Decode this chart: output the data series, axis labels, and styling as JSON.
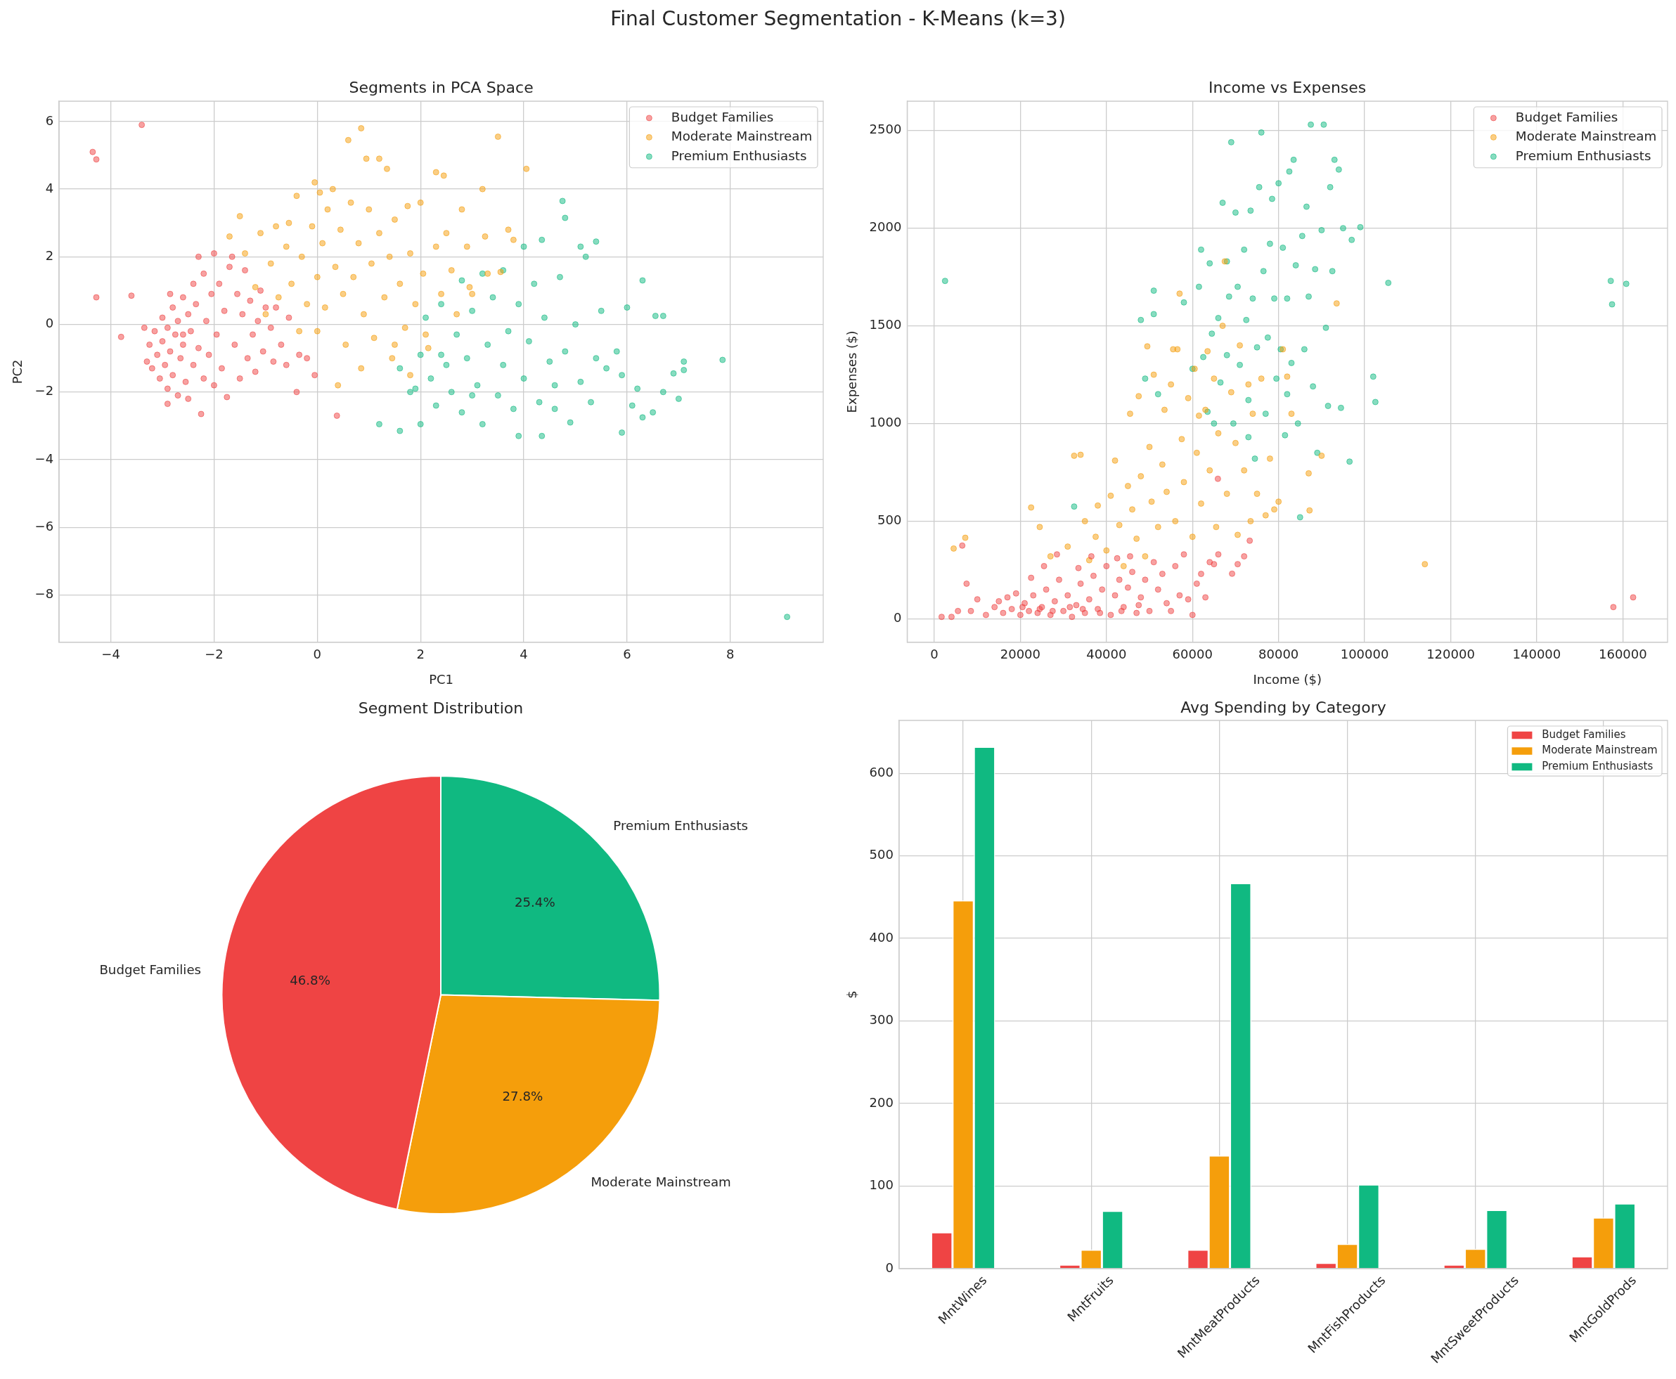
{
  "chart_data": [
    {
      "type": "scatter",
      "title": "Segments in PCA Space",
      "xlabel": "PC1",
      "ylabel": "PC2",
      "annotations": [
        "Final Customer Segmentation - K-Means (k=3)"
      ],
      "xlim": [
        -5.0,
        9.8
      ],
      "ylim": [
        -9.4,
        6.6
      ],
      "xticks": [
        {
          "value": -4,
          "label": "−4"
        },
        {
          "value": -2,
          "label": "−2"
        },
        0,
        2,
        4,
        6,
        8
      ],
      "yticks": [
        {
          "value": -8,
          "label": "−8"
        },
        {
          "value": -6,
          "label": "−6"
        },
        {
          "value": -4,
          "label": "−4"
        },
        {
          "value": -2,
          "label": "−2"
        },
        0,
        2,
        4,
        6
      ],
      "grid": true,
      "legend": "top right",
      "marker": "circle",
      "series": [
        {
          "name": "Budget Families",
          "color": "#ef4444",
          "x": [
            -3.3,
            -3.25,
            -3.2,
            -3.15,
            -3.1,
            -3.05,
            -3.0,
            -3.0,
            -2.95,
            -2.9,
            -2.9,
            -2.85,
            -2.8,
            -2.8,
            -2.75,
            -2.7,
            -2.7,
            -2.65,
            -2.6,
            -2.6,
            -2.55,
            -2.5,
            -2.5,
            -2.45,
            -2.4,
            -2.4,
            -2.35,
            -2.3,
            -2.3,
            -2.25,
            -2.2,
            -2.2,
            -2.15,
            -2.1,
            -2.05,
            -2.0,
            -2.0,
            -1.95,
            -1.9,
            -1.85,
            -1.8,
            -1.75,
            -1.7,
            -1.65,
            -1.6,
            -1.55,
            -1.5,
            -1.45,
            -1.4,
            -1.35,
            -1.3,
            -1.25,
            -1.2,
            -1.15,
            -1.1,
            -1.05,
            -1.0,
            -0.9,
            -0.85,
            -0.8,
            -0.7,
            -0.6,
            -0.55,
            -0.4,
            -0.35,
            -0.2,
            -0.05,
            0.38,
            -3.8,
            -3.6,
            -4.28,
            -4.35,
            -4.28,
            -3.4,
            -2.9,
            -3.35,
            -2.85,
            -2.6
          ],
          "values": [
            -1.1,
            -0.6,
            -1.3,
            -0.2,
            -0.9,
            -1.6,
            -0.5,
            0.2,
            -1.2,
            -0.1,
            -1.9,
            -0.8,
            0.5,
            -1.5,
            -0.3,
            -2.1,
            0.1,
            -1.0,
            0.8,
            -0.6,
            -1.7,
            0.3,
            -2.2,
            -0.2,
            1.2,
            -1.2,
            0.6,
            -0.7,
            2.0,
            -2.65,
            1.5,
            -1.6,
            0.1,
            -0.9,
            0.9,
            -1.8,
            2.1,
            -0.3,
            1.2,
            -1.3,
            0.4,
            -2.15,
            1.7,
            2.0,
            -0.6,
            0.9,
            -1.6,
            0.3,
            1.6,
            -1.0,
            0.7,
            -0.3,
            -1.4,
            0.1,
            1.0,
            -0.8,
            0.5,
            -0.1,
            -1.1,
            0.5,
            -0.6,
            -1.2,
            0.2,
            -2.0,
            -0.9,
            -1.0,
            -1.5,
            -2.7,
            -0.37,
            0.85,
            0.8,
            5.1,
            4.88,
            5.9,
            -2.35,
            -0.1,
            0.9,
            -0.3
          ]
        },
        {
          "name": "Moderate Mainstream",
          "color": "#f59e0b",
          "x": [
            -1.7,
            -1.5,
            -1.4,
            -1.2,
            -1.1,
            -1.0,
            -0.9,
            -0.8,
            -0.75,
            -0.6,
            -0.55,
            -0.5,
            -0.4,
            -0.35,
            -0.3,
            -0.2,
            -0.1,
            -0.05,
            0.0,
            0.0,
            0.05,
            0.1,
            0.15,
            0.2,
            0.3,
            0.35,
            0.4,
            0.45,
            0.5,
            0.55,
            0.6,
            0.65,
            0.7,
            0.8,
            0.85,
            0.9,
            0.95,
            1.0,
            1.05,
            1.1,
            1.2,
            1.2,
            1.3,
            1.35,
            1.4,
            1.45,
            1.5,
            1.6,
            1.7,
            1.75,
            1.8,
            1.9,
            2.0,
            2.05,
            2.15,
            2.3,
            2.3,
            2.4,
            2.45,
            2.5,
            2.6,
            2.7,
            2.8,
            2.9,
            2.95,
            3.2,
            3.25,
            3.3,
            3.5,
            3.55,
            3.7,
            3.8,
            4.05,
            3.0,
            1.8,
            2.1,
            0.85,
            1.5
          ],
          "values": [
            2.6,
            3.2,
            2.1,
            1.1,
            2.7,
            0.3,
            1.8,
            2.9,
            0.8,
            2.3,
            3.0,
            1.2,
            3.8,
            -0.2,
            2.0,
            0.6,
            2.9,
            4.2,
            1.4,
            -0.2,
            3.9,
            2.4,
            0.5,
            3.4,
            4.0,
            1.7,
            -1.8,
            2.8,
            0.9,
            -0.6,
            5.45,
            3.6,
            1.4,
            2.4,
            5.8,
            0.3,
            4.9,
            3.4,
            1.8,
            -0.4,
            4.9,
            2.7,
            0.8,
            4.6,
            2.0,
            -1.0,
            3.1,
            1.2,
            -0.1,
            3.5,
            2.1,
            0.6,
            3.6,
            1.5,
            -0.7,
            4.5,
            2.3,
            0.9,
            4.4,
            2.7,
            1.6,
            0.3,
            3.4,
            2.3,
            1.1,
            4.0,
            2.6,
            1.5,
            5.55,
            1.55,
            2.8,
            2.5,
            4.6,
            0.9,
            -1.5,
            -0.3,
            -1.3,
            -0.6
          ]
        },
        {
          "name": "Premium Enthusiasts",
          "color": "#10b981",
          "x": [
            1.2,
            1.6,
            1.6,
            1.8,
            2.0,
            2.0,
            2.1,
            2.2,
            2.3,
            2.4,
            2.5,
            2.6,
            2.7,
            2.8,
            2.8,
            2.9,
            3.0,
            3.1,
            3.2,
            3.2,
            3.3,
            3.4,
            3.5,
            3.6,
            3.6,
            3.7,
            3.8,
            3.9,
            3.9,
            4.0,
            4.0,
            4.1,
            4.2,
            4.3,
            4.35,
            4.35,
            4.4,
            4.5,
            4.6,
            4.7,
            4.75,
            4.8,
            4.8,
            4.9,
            5.0,
            5.1,
            5.1,
            5.2,
            5.3,
            5.4,
            5.4,
            5.5,
            5.6,
            5.8,
            5.9,
            5.9,
            6.0,
            6.1,
            6.2,
            6.3,
            6.3,
            6.5,
            6.55,
            6.7,
            6.7,
            6.9,
            7.0,
            7.1,
            7.1,
            7.85,
            9.1,
            1.9,
            3.0,
            4.6,
            2.4
          ],
          "values": [
            -2.95,
            -3.15,
            -1.3,
            -2.0,
            -0.9,
            -2.95,
            0.2,
            -1.6,
            -2.4,
            0.6,
            -1.2,
            -2.0,
            -0.3,
            1.3,
            -2.6,
            -1.0,
            0.4,
            -1.8,
            -2.95,
            1.5,
            -0.6,
            0.8,
            -2.1,
            1.6,
            -1.2,
            -0.2,
            -2.5,
            0.6,
            -3.3,
            2.3,
            -1.6,
            -0.5,
            1.2,
            -2.3,
            2.5,
            -3.3,
            0.2,
            -1.1,
            -2.5,
            1.4,
            3.65,
            3.15,
            -0.8,
            -2.9,
            0.0,
            2.3,
            -1.7,
            2.0,
            -2.3,
            -1.0,
            2.45,
            0.4,
            -1.3,
            -0.8,
            -3.2,
            -1.5,
            0.5,
            -2.4,
            -1.9,
            1.3,
            -2.75,
            -2.6,
            0.25,
            0.25,
            -2.0,
            -1.45,
            -2.2,
            -1.1,
            -1.35,
            -1.05,
            -8.65,
            -1.9,
            -2.1,
            -1.8,
            -0.9
          ]
        }
      ]
    },
    {
      "type": "scatter",
      "title": "Income vs Expenses",
      "xlabel": "Income ($)",
      "ylabel": "Expenses ($)",
      "xlim": [
        -6300,
        170400
      ],
      "ylim": [
        -120,
        2650
      ],
      "xticks": [
        0,
        20000,
        40000,
        60000,
        80000,
        100000,
        120000,
        140000,
        160000
      ],
      "yticks": [
        0,
        500,
        1000,
        1500,
        2000,
        2500
      ],
      "grid": true,
      "legend": "top right",
      "marker": "circle",
      "series": [
        {
          "name": "Budget Families",
          "color": "#ef4444",
          "x": [
            1700,
            4000,
            5500,
            6500,
            7500,
            8500,
            10000,
            12000,
            14000,
            15000,
            16000,
            17000,
            18000,
            19000,
            20000,
            21000,
            22000,
            22500,
            23000,
            24000,
            25000,
            25500,
            26000,
            27000,
            28000,
            28500,
            29000,
            30000,
            31000,
            32000,
            33000,
            33500,
            34000,
            35000,
            36000,
            36500,
            37000,
            38000,
            39000,
            40000,
            41000,
            42000,
            42500,
            43000,
            44000,
            45000,
            45500,
            46000,
            47000,
            48000,
            49000,
            50000,
            51000,
            52000,
            53000,
            54000,
            55000,
            56000,
            57000,
            58000,
            59000,
            60000,
            61000,
            62000,
            63000,
            64000,
            65000,
            66000,
            65900,
            69200,
            70500,
            72000,
            73300,
            157800,
            162400,
            20500,
            24500,
            27500,
            31500,
            34500,
            38500,
            43500,
            47500
          ],
          "values": [
            10,
            10,
            40,
            375,
            180,
            40,
            100,
            20,
            60,
            90,
            30,
            110,
            50,
            130,
            20,
            80,
            40,
            210,
            120,
            30,
            60,
            270,
            150,
            20,
            90,
            330,
            200,
            40,
            120,
            10,
            70,
            260,
            180,
            30,
            100,
            320,
            220,
            50,
            150,
            270,
            20,
            120,
            310,
            200,
            60,
            160,
            320,
            240,
            30,
            110,
            200,
            40,
            290,
            150,
            230,
            80,
            40,
            270,
            120,
            330,
            100,
            20,
            180,
            230,
            110,
            290,
            280,
            330,
            717,
            231,
            280,
            320,
            400,
            60,
            110,
            60,
            50,
            40,
            60,
            50,
            30,
            40,
            70
          ]
        },
        {
          "name": "Moderate Mainstream",
          "color": "#f59e0b",
          "x": [
            4500,
            7200,
            22500,
            24500,
            27000,
            31000,
            32500,
            34000,
            35000,
            36000,
            37500,
            38000,
            40000,
            41000,
            42000,
            43000,
            44000,
            45000,
            45500,
            46000,
            47000,
            47500,
            48000,
            49000,
            49500,
            50000,
            50500,
            51000,
            52000,
            53000,
            53500,
            54000,
            55000,
            55500,
            56000,
            57000,
            57500,
            58000,
            59000,
            60000,
            60500,
            61000,
            62000,
            63000,
            63500,
            64000,
            65000,
            65500,
            66000,
            67000,
            67500,
            68000,
            69000,
            70000,
            70500,
            71000,
            72000,
            73000,
            73500,
            74000,
            75000,
            76000,
            77000,
            78000,
            79000,
            80000,
            81000,
            82000,
            83000,
            87000,
            87200,
            90000,
            93500,
            114000,
            56500,
            61500
          ],
          "values": [
            360,
            415,
            570,
            470,
            320,
            370,
            835,
            840,
            500,
            300,
            420,
            580,
            350,
            630,
            810,
            480,
            270,
            680,
            1050,
            560,
            410,
            1140,
            730,
            320,
            1395,
            880,
            600,
            1250,
            470,
            790,
            1070,
            650,
            1200,
            1380,
            500,
            1665,
            920,
            700,
            1130,
            420,
            1280,
            850,
            590,
            1070,
            1370,
            760,
            1230,
            470,
            950,
            1500,
            1830,
            640,
            1160,
            900,
            430,
            1400,
            760,
            1200,
            500,
            1050,
            640,
            1230,
            530,
            820,
            560,
            600,
            1380,
            1240,
            1050,
            745,
            555,
            835,
            1615,
            280,
            1380,
            1040
          ]
        },
        {
          "name": "Premium Enthusiasts",
          "color": "#10b981",
          "x": [
            2500,
            32500,
            48000,
            49000,
            51000,
            51000,
            52000,
            58000,
            60000,
            61500,
            62000,
            62500,
            63500,
            64000,
            64500,
            65000,
            66000,
            66500,
            67000,
            68000,
            68500,
            69000,
            69500,
            70000,
            70500,
            71000,
            72000,
            72500,
            73000,
            73500,
            74000,
            74500,
            75000,
            75500,
            76000,
            76500,
            77000,
            77500,
            78000,
            78500,
            79000,
            79500,
            80000,
            80500,
            81000,
            81500,
            82000,
            82500,
            83000,
            83500,
            84000,
            84500,
            85000,
            85500,
            86000,
            86500,
            87000,
            87500,
            88000,
            88500,
            89000,
            90000,
            90500,
            91000,
            91500,
            92000,
            92500,
            93000,
            94000,
            94500,
            95000,
            96500,
            97000,
            99000,
            102000,
            102500,
            105500,
            157200,
            157500,
            160800,
            68000,
            73000,
            82000
          ],
          "values": [
            1730,
            575,
            1530,
            1230,
            1680,
            1560,
            1150,
            1620,
            1280,
            1700,
            1890,
            1340,
            1060,
            1820,
            1460,
            1000,
            1540,
            1210,
            2130,
            1350,
            1650,
            2440,
            1000,
            2080,
            1700,
            1300,
            1890,
            1530,
            1120,
            2090,
            1640,
            820,
            1390,
            2210,
            2490,
            1780,
            1050,
            1440,
            1920,
            2150,
            1640,
            1230,
            2230,
            1380,
            1900,
            940,
            1640,
            2290,
            1310,
            2350,
            1810,
            1000,
            520,
            1960,
            1380,
            2110,
            1650,
            2530,
            1190,
            1790,
            850,
            1990,
            2530,
            1490,
            1090,
            2210,
            1780,
            2350,
            2300,
            1080,
            2000,
            805,
            1940,
            2005,
            1240,
            1110,
            1720,
            1730,
            1610,
            1715,
            1830,
            930,
            1150
          ]
        }
      ]
    },
    {
      "type": "pie",
      "title": "Segment Distribution",
      "categories": [
        "Budget Families",
        "Moderate Mainstream",
        "Premium Enthusiasts"
      ],
      "values": [
        46.8,
        27.8,
        25.4
      ],
      "colors": [
        "#ef4444",
        "#f59e0b",
        "#10b981"
      ],
      "value_labels": [
        "46.8%",
        "27.8%",
        "25.4%"
      ]
    },
    {
      "type": "bar",
      "title": "Avg Spending by Category",
      "ylabel": "$",
      "categories": [
        "MntWines",
        "MntFruits",
        "MntMeatProducts",
        "MntFishProducts",
        "MntSweetProducts",
        "MntGoldProds"
      ],
      "ylim": [
        0,
        664
      ],
      "yticks": [
        0,
        100,
        200,
        300,
        400,
        500,
        600
      ],
      "grid": true,
      "legend": "top right",
      "series": [
        {
          "name": "Budget Families",
          "color": "#ef4444",
          "values": [
            44,
            5,
            23,
            7,
            5,
            15
          ]
        },
        {
          "name": "Moderate Mainstream",
          "color": "#f59e0b",
          "values": [
            446,
            23,
            137,
            30,
            24,
            62
          ]
        },
        {
          "name": "Premium Enthusiasts",
          "color": "#10b981",
          "values": [
            632,
            70,
            467,
            102,
            71,
            79
          ]
        }
      ]
    }
  ]
}
